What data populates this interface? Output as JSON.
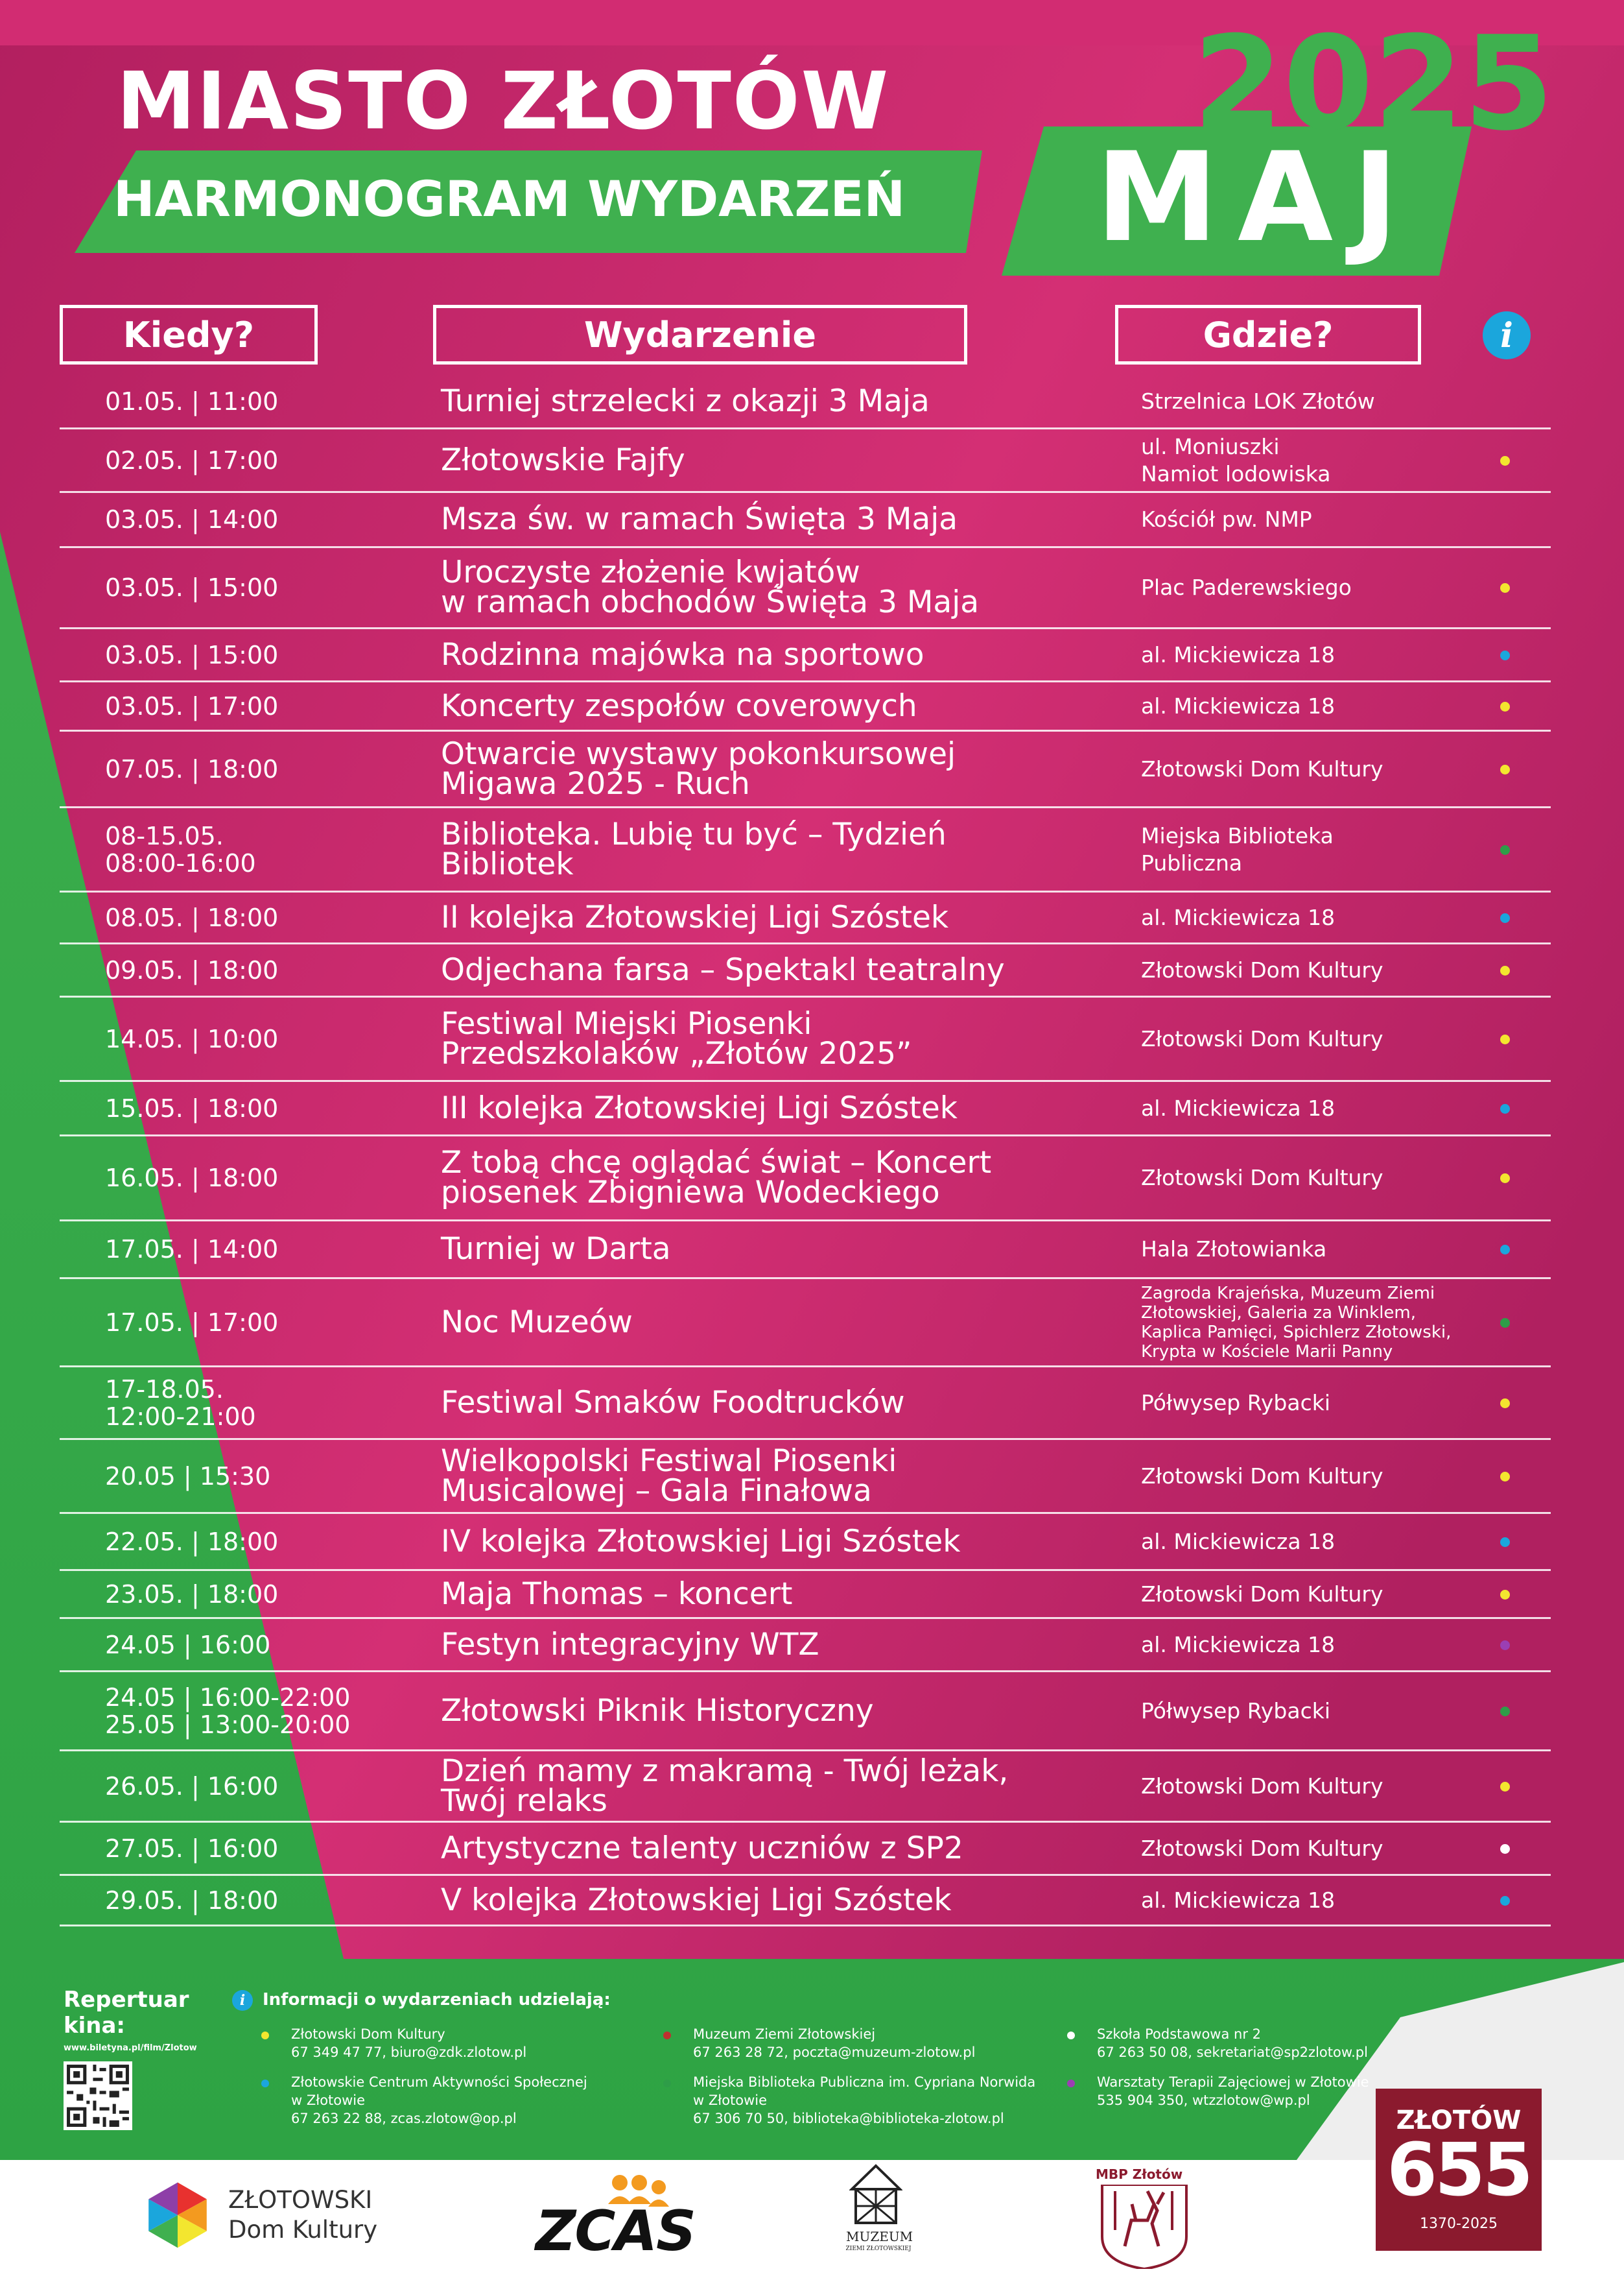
{
  "header": {
    "city": "MIASTO ZŁOTÓW",
    "subtitle": "HARMONOGRAM WYDARZEŃ",
    "year": "2025",
    "month": "MAJ"
  },
  "columns": {
    "when": "Kiedy?",
    "event": "Wydarzenie",
    "where": "Gdzie?",
    "info_icon": "info-icon"
  },
  "colors": {
    "magenta": "#d62f74",
    "green": "#3fb04f",
    "yellow": "#f3e62f",
    "blue": "#1ba6dc",
    "dark_green": "#2e9d48",
    "purple": "#9b3fb3",
    "white": "#ffffff",
    "red": "#c0302f"
  },
  "events": [
    {
      "when": "01.05. | 11:00",
      "event": "Turniej strzelecki z okazji 3 Maja",
      "where": "Strzelnica LOK Złotów",
      "dot": ""
    },
    {
      "when": "02.05. | 17:00",
      "event": "Złotowskie Fajfy",
      "where": "ul. Moniuszki\nNamiot lodowiska",
      "dot": "yellow"
    },
    {
      "when": "03.05. | 14:00",
      "event": "Msza św. w ramach Święta 3 Maja",
      "where": "Kościół pw. NMP",
      "dot": ""
    },
    {
      "when": "03.05. | 15:00",
      "event": "Uroczyste złożenie kwjatów\nw ramach obchodów Święta 3 Maja",
      "where": "Plac Paderewskiego",
      "dot": "yellow"
    },
    {
      "when": "03.05. | 15:00",
      "event": "Rodzinna majówka na sportowo",
      "where": "al. Mickiewicza 18",
      "dot": "blue"
    },
    {
      "when": "03.05. | 17:00",
      "event": "Koncerty zespołów coverowych",
      "where": "al. Mickiewicza 18",
      "dot": "yellow"
    },
    {
      "when": "07.05. | 18:00",
      "event": "Otwarcie wystawy pokonkursowej\nMigawa 2025 - Ruch",
      "where": "Złotowski Dom Kultury",
      "dot": "yellow"
    },
    {
      "when": "08-15.05.\n08:00-16:00",
      "event": "Biblioteka. Lubię tu być – Tydzień\nBibliotek",
      "where": "Miejska Biblioteka\nPubliczna",
      "dot": "dark_green"
    },
    {
      "when": "08.05. | 18:00",
      "event": "II kolejka Złotowskiej Ligi Szóstek",
      "where": "al. Mickiewicza 18",
      "dot": "blue"
    },
    {
      "when": "09.05. | 18:00",
      "event": "Odjechana farsa – Spektakl teatralny",
      "where": "Złotowski Dom Kultury",
      "dot": "yellow"
    },
    {
      "when": "14.05. | 10:00",
      "event": "Festiwal Miejski Piosenki\nPrzedszkolaków „Złotów 2025”",
      "where": "Złotowski Dom Kultury",
      "dot": "yellow"
    },
    {
      "when": "15.05. | 18:00",
      "event": "III kolejka Złotowskiej Ligi Szóstek",
      "where": "al. Mickiewicza 18",
      "dot": "blue"
    },
    {
      "when": "16.05. | 18:00",
      "event": "Z tobą chcę oglądać świat – Koncert\npiosenek Zbigniewa Wodeckiego",
      "where": "Złotowski Dom Kultury",
      "dot": "yellow"
    },
    {
      "when": "17.05. | 14:00",
      "event": "Turniej w Darta",
      "where": "Hala Złotowianka",
      "dot": "blue"
    },
    {
      "when": "17.05. | 17:00",
      "event": "Noc Muzeów",
      "where": "Zagroda Krajeńska, Muzeum Ziemi\nZłotowskiej, Galeria za Winklem,\nKaplica Pamięci, Spichlerz Złotowski,\nKrypta w Kościele Marii Panny",
      "dot": "dark_green"
    },
    {
      "when": "17-18.05.\n12:00-21:00",
      "event": "Festiwal Smaków Foodtrucków",
      "where": "Półwysep Rybacki",
      "dot": "yellow"
    },
    {
      "when": "20.05 | 15:30",
      "event": "Wielkopolski Festiwal Piosenki\nMusicalowej – Gala Finałowa",
      "where": "Złotowski Dom Kultury",
      "dot": "yellow"
    },
    {
      "when": "22.05. | 18:00",
      "event": "IV kolejka Złotowskiej Ligi Szóstek",
      "where": "al. Mickiewicza 18",
      "dot": "blue"
    },
    {
      "when": "23.05. | 18:00",
      "event": "Maja Thomas – koncert",
      "where": "Złotowski Dom Kultury",
      "dot": "yellow"
    },
    {
      "when": "24.05 | 16:00",
      "event": "Festyn integracyjny WTZ",
      "where": "al. Mickiewicza 18",
      "dot": "purple"
    },
    {
      "when": "24.05 | 16:00-22:00\n25.05 | 13:00-20:00",
      "event": "Złotowski Piknik Historyczny",
      "where": "Półwysep Rybacki",
      "dot": "dark_green"
    },
    {
      "when": "26.05. | 16:00",
      "event": "Dzień mamy z makramą - Twój leżak,\nTwój relaks",
      "where": "Złotowski Dom Kultury",
      "dot": "yellow"
    },
    {
      "when": "27.05. | 16:00",
      "event": "Artystyczne talenty uczniów z SP2",
      "where": "Złotowski Dom Kultury",
      "dot": "white"
    },
    {
      "when": "29.05. | 18:00",
      "event": "V kolejka Złotowskiej Ligi Szóstek",
      "where": "al. Mickiewicza 18",
      "dot": "blue"
    }
  ],
  "footer": {
    "repertuar": "Repertuar\nkina:",
    "repertuar_url": "www.biletyna.pl/film/Zlotow",
    "info_heading": "Informacji o wydarzeniach udzielają:",
    "contacts": [
      {
        "dot": "yellow",
        "name": "Złotowski Dom Kultury",
        "details": "67 349 47 77, biuro@zdk.zlotow.pl"
      },
      {
        "dot": "blue",
        "name": "Złotowskie Centrum Aktywności Społecznej\nw Złotowie",
        "details": "67 263 22 88, zcas.zlotow@op.pl"
      },
      {
        "dot": "red",
        "name": "Muzeum Ziemi Złotowskiej",
        "details": "67 263 28 72, poczta@muzeum-zlotow.pl"
      },
      {
        "dot": "dark_green",
        "name": "Miejska Biblioteka Publiczna im. Cypriana Norwida\nw Złotowie",
        "details": "67 306 70 50, biblioteka@biblioteka-zlotow.pl"
      },
      {
        "dot": "white",
        "name": "Szkoła Podstawowa nr 2",
        "details": "67 263 50 08, sekretariat@sp2zlotow.pl"
      },
      {
        "dot": "purple",
        "name": "Warsztaty Terapii Zajęciowej w Złotowie",
        "details": "535 904 350, wtzzlotow@wp.pl"
      }
    ],
    "logos": {
      "zdk_line1": "ZŁOTOWSKI",
      "zdk_line2": "Dom Kultury",
      "zcas": "ZCAS",
      "muzeum_line1": "MUZEUM",
      "muzeum_line2": "ZIEMI ZŁOTOWSKIEJ",
      "mbp": "MBP Złotów",
      "z655_title": "ZŁOTÓW",
      "z655_number": "655",
      "z655_years": "1370-2025"
    }
  }
}
